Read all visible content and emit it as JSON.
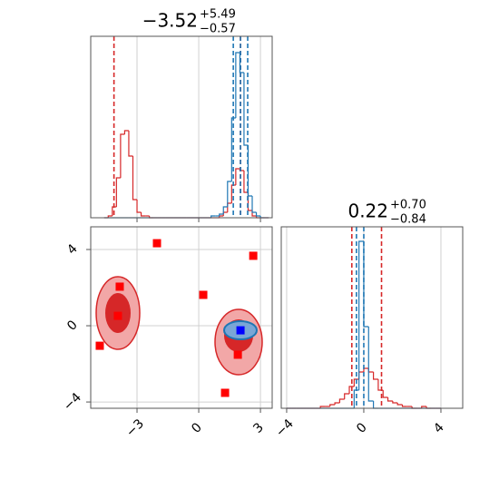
{
  "chart_data": [
    {
      "type": "histogram",
      "title": {
        "main": "−3.52",
        "upper": "+5.49",
        "lower": "−0.57"
      },
      "bins": [
        -4.6,
        -4.4,
        -4.2,
        -4.0,
        -3.8,
        -3.6,
        -3.4,
        -3.2,
        -3.0,
        -2.8,
        -2.6,
        -2.4,
        -2.2,
        -2.0,
        -1.8,
        -1.6,
        -1.4,
        -1.2,
        -1.0,
        -0.8,
        -0.6,
        -0.4,
        -0.2,
        0.0,
        0.2,
        0.4,
        0.6,
        0.8,
        1.0,
        1.2,
        1.4,
        1.6,
        1.8,
        2.0,
        2.2,
        2.4,
        2.6,
        2.8,
        3.0,
        3.2,
        3.4
      ],
      "series": [
        {
          "color": "#d62728",
          "values": [
            0,
            1,
            6,
            22,
            46,
            48,
            34,
            10,
            3,
            1,
            1,
            0,
            0,
            0,
            0,
            0,
            0,
            0,
            0,
            0,
            0,
            0,
            0,
            0,
            0,
            0,
            0,
            0,
            1,
            3,
            8,
            18,
            27,
            26,
            14,
            4,
            1,
            0,
            0,
            0
          ],
          "quantiles": [
            -4.12,
            2.03
          ]
        },
        {
          "color": "#1f77b4",
          "values": [
            0,
            0,
            0,
            0,
            0,
            0,
            0,
            0,
            0,
            0,
            0,
            0,
            0,
            0,
            0,
            0,
            0,
            0,
            0,
            0,
            0,
            0,
            0,
            0,
            0,
            0,
            1,
            1,
            2,
            6,
            20,
            55,
            91,
            80,
            40,
            12,
            3,
            1,
            0,
            0
          ],
          "quantiles": [
            1.68,
            2.03,
            2.38
          ]
        }
      ],
      "xlim": [
        -5.25,
        3.57
      ],
      "ylim": [
        0,
        100
      ],
      "grid": true
    },
    {
      "type": "scatter",
      "series": [
        {
          "color": "#ff0000",
          "x": [
            -2.03,
            2.65,
            -3.84,
            0.22,
            -3.93,
            -4.81,
            1.9,
            1.28
          ],
          "y": [
            4.33,
            3.67,
            2.05,
            1.62,
            0.52,
            -1.05,
            -1.52,
            -3.52
          ]
        },
        {
          "color": "#0000ff",
          "x": [
            2.03
          ],
          "y": [
            -0.24
          ]
        }
      ],
      "xlim": [
        -5.25,
        3.57
      ],
      "ylim": [
        -4.33,
        5.19
      ],
      "xticks": [
        {
          "value": -3,
          "label": "−3"
        },
        0,
        3
      ],
      "yticks": [
        {
          "value": -4,
          "label": "−4"
        },
        0,
        4
      ],
      "grid": true
    },
    {
      "type": "histogram",
      "title": {
        "main": "0.22",
        "upper": "+0.70",
        "lower": "−0.84"
      },
      "bins": [
        -4.0,
        -3.75,
        -3.5,
        -3.25,
        -3.0,
        -2.75,
        -2.5,
        -2.25,
        -2.0,
        -1.75,
        -1.5,
        -1.25,
        -1.0,
        -0.75,
        -0.5,
        -0.25,
        0.0,
        0.25,
        0.5,
        0.75,
        1.0,
        1.25,
        1.5,
        1.75,
        2.0,
        2.25,
        2.5,
        2.75,
        3.0,
        3.25,
        3.5,
        3.75,
        4.0
      ],
      "series": [
        {
          "color": "#d62728",
          "values": [
            0,
            0,
            0,
            0,
            0,
            0,
            0,
            1,
            1,
            2,
            3,
            5,
            8,
            12,
            16,
            20,
            22,
            20,
            16,
            10,
            6,
            4,
            3,
            2,
            1,
            1,
            0,
            0,
            1,
            0,
            0,
            0
          ],
          "quantiles": [
            -0.62,
            0.92
          ]
        },
        {
          "color": "#1f77b4",
          "values": [
            0,
            0,
            0,
            0,
            0,
            0,
            0,
            0,
            0,
            0,
            0,
            0,
            0,
            0,
            10,
            92,
            45,
            4,
            0,
            0,
            0,
            0,
            0,
            0,
            0,
            0,
            0,
            0,
            0,
            0,
            0,
            0
          ],
          "quantiles": [
            -0.38,
            0.0
          ]
        }
      ],
      "xlim": [
        -4.28,
        5.13
      ],
      "ylim": [
        0,
        100
      ],
      "xticks": [
        {
          "value": -4,
          "label": "−4"
        },
        0,
        4
      ],
      "grid": true
    }
  ]
}
